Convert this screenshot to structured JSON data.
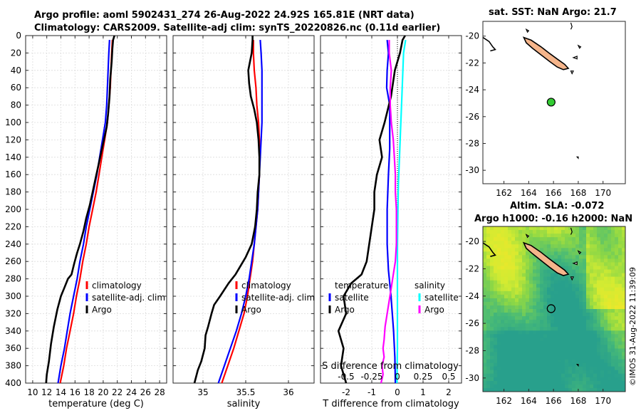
{
  "header": {
    "title_line1": "Argo profile: aoml 5902431_274 26-Aug-2022 24.92S 165.81E (NRT data)",
    "title_line2": "Climatology: CARS2009. Satellite-adj clim: synTS_20220826.nc (0.11d earlier)"
  },
  "map_top": {
    "title": "sat. SST: NaN Argo: 21.7"
  },
  "map_bottom": {
    "title_line1": "Altim. SLA: -0.072",
    "title_line2": "Argo h1000: -0.16 h2000: NaN"
  },
  "copyright": "©IMOS 31-Aug-2022 11:39:09",
  "chart_data": [
    {
      "id": "temperature",
      "type": "line",
      "xlabel": "temperature (deg C)",
      "xlim": [
        9,
        29
      ],
      "xticks": [
        10,
        12,
        14,
        16,
        18,
        20,
        22,
        24,
        26,
        28
      ],
      "ylim": [
        400,
        0
      ],
      "yticks": [
        0,
        20,
        40,
        60,
        80,
        100,
        120,
        140,
        160,
        180,
        200,
        220,
        240,
        260,
        280,
        300,
        320,
        340,
        360,
        380,
        400
      ],
      "grid": true,
      "legend": {
        "position": "lower-right",
        "entries": [
          "climatology",
          "satellite-adj. clim",
          "Argo"
        ]
      },
      "series": [
        {
          "name": "climatology",
          "color": "#ff0000",
          "width": 2.2,
          "points": [
            [
              21.3,
              5
            ],
            [
              21.2,
              20
            ],
            [
              21.1,
              40
            ],
            [
              21.0,
              60
            ],
            [
              20.8,
              80
            ],
            [
              20.6,
              100
            ],
            [
              20.2,
              120
            ],
            [
              19.8,
              140
            ],
            [
              19.4,
              160
            ],
            [
              19.0,
              180
            ],
            [
              18.5,
              200
            ],
            [
              18.0,
              220
            ],
            [
              17.6,
              240
            ],
            [
              17.1,
              260
            ],
            [
              16.7,
              280
            ],
            [
              16.2,
              300
            ],
            [
              15.8,
              320
            ],
            [
              15.3,
              340
            ],
            [
              14.8,
              360
            ],
            [
              14.4,
              380
            ],
            [
              13.9,
              400
            ]
          ]
        },
        {
          "name": "satellite-adj. clim",
          "color": "#0000ff",
          "width": 2.2,
          "points": [
            [
              20.9,
              5
            ],
            [
              20.8,
              20
            ],
            [
              20.7,
              40
            ],
            [
              20.6,
              60
            ],
            [
              20.5,
              80
            ],
            [
              20.3,
              100
            ],
            [
              19.9,
              120
            ],
            [
              19.5,
              140
            ],
            [
              19.1,
              160
            ],
            [
              18.6,
              180
            ],
            [
              18.1,
              200
            ],
            [
              17.6,
              220
            ],
            [
              17.2,
              240
            ],
            [
              16.7,
              260
            ],
            [
              16.3,
              280
            ],
            [
              15.8,
              300
            ],
            [
              15.3,
              320
            ],
            [
              14.9,
              340
            ],
            [
              14.5,
              360
            ],
            [
              14.0,
              380
            ],
            [
              13.6,
              400
            ]
          ]
        },
        {
          "name": "Argo",
          "color": "#000000",
          "width": 2.6,
          "points": [
            [
              21.6,
              0
            ],
            [
              21.4,
              5
            ],
            [
              21.3,
              15
            ],
            [
              21.2,
              30
            ],
            [
              21.0,
              50
            ],
            [
              20.9,
              70
            ],
            [
              20.7,
              90
            ],
            [
              20.5,
              105
            ],
            [
              20.1,
              120
            ],
            [
              19.7,
              135
            ],
            [
              19.3,
              150
            ],
            [
              18.9,
              165
            ],
            [
              18.5,
              180
            ],
            [
              18.1,
              195
            ],
            [
              17.6,
              210
            ],
            [
              17.2,
              225
            ],
            [
              16.7,
              240
            ],
            [
              16.3,
              250
            ],
            [
              15.9,
              262
            ],
            [
              15.5,
              275
            ],
            [
              15.0,
              280
            ],
            [
              14.5,
              290
            ],
            [
              14.0,
              300
            ],
            [
              13.5,
              315
            ],
            [
              13.0,
              335
            ],
            [
              12.6,
              355
            ],
            [
              12.3,
              375
            ],
            [
              12.0,
              390
            ],
            [
              11.9,
              400
            ]
          ]
        }
      ]
    },
    {
      "id": "salinity",
      "type": "line",
      "xlabel": "salinity",
      "xlim": [
        34.65,
        36.3
      ],
      "xticks": [
        35,
        35.5,
        36
      ],
      "ylim": [
        400,
        0
      ],
      "grid": true,
      "legend": {
        "position": "lower-right",
        "entries": [
          "climatology",
          "satellite-adj. clim",
          "Argo"
        ]
      },
      "series": [
        {
          "name": "climatology",
          "color": "#ff0000",
          "width": 2.2,
          "points": [
            [
              35.59,
              5
            ],
            [
              35.59,
              20
            ],
            [
              35.6,
              40
            ],
            [
              35.62,
              60
            ],
            [
              35.63,
              80
            ],
            [
              35.65,
              100
            ],
            [
              35.66,
              120
            ],
            [
              35.66,
              140
            ],
            [
              35.66,
              160
            ],
            [
              35.65,
              180
            ],
            [
              35.64,
              200
            ],
            [
              35.62,
              220
            ],
            [
              35.6,
              240
            ],
            [
              35.58,
              260
            ],
            [
              35.55,
              280
            ],
            [
              35.52,
              300
            ],
            [
              35.48,
              320
            ],
            [
              35.42,
              340
            ],
            [
              35.36,
              360
            ],
            [
              35.29,
              380
            ],
            [
              35.22,
              400
            ]
          ]
        },
        {
          "name": "satellite-adj. clim",
          "color": "#0000ff",
          "width": 2.2,
          "points": [
            [
              35.67,
              5
            ],
            [
              35.68,
              20
            ],
            [
              35.69,
              40
            ],
            [
              35.69,
              60
            ],
            [
              35.69,
              80
            ],
            [
              35.69,
              100
            ],
            [
              35.68,
              120
            ],
            [
              35.67,
              140
            ],
            [
              35.66,
              160
            ],
            [
              35.65,
              180
            ],
            [
              35.64,
              200
            ],
            [
              35.62,
              220
            ],
            [
              35.6,
              240
            ],
            [
              35.57,
              260
            ],
            [
              35.54,
              280
            ],
            [
              35.5,
              300
            ],
            [
              35.45,
              320
            ],
            [
              35.39,
              340
            ],
            [
              35.32,
              360
            ],
            [
              35.25,
              380
            ],
            [
              35.18,
              400
            ]
          ]
        },
        {
          "name": "Argo",
          "color": "#000000",
          "width": 2.6,
          "points": [
            [
              35.58,
              0
            ],
            [
              35.58,
              5
            ],
            [
              35.57,
              20
            ],
            [
              35.53,
              40
            ],
            [
              35.54,
              55
            ],
            [
              35.56,
              70
            ],
            [
              35.6,
              85
            ],
            [
              35.63,
              100
            ],
            [
              35.65,
              120
            ],
            [
              35.66,
              140
            ],
            [
              35.66,
              160
            ],
            [
              35.64,
              180
            ],
            [
              35.63,
              200
            ],
            [
              35.61,
              220
            ],
            [
              35.57,
              240
            ],
            [
              35.5,
              255
            ],
            [
              35.44,
              265
            ],
            [
              35.38,
              275
            ],
            [
              35.3,
              285
            ],
            [
              35.2,
              300
            ],
            [
              35.13,
              310
            ],
            [
              35.1,
              320
            ],
            [
              35.06,
              335
            ],
            [
              35.03,
              345
            ],
            [
              35.02,
              360
            ],
            [
              34.98,
              375
            ],
            [
              34.94,
              385
            ],
            [
              34.9,
              400
            ]
          ]
        }
      ]
    },
    {
      "id": "difference",
      "type": "line",
      "xlabel": "T difference from climatology",
      "x2label": "S difference from climatology",
      "xlim": [
        -3,
        2.5
      ],
      "xticks": [
        -2,
        -1,
        0,
        1,
        2
      ],
      "xlim_salinity": [
        -0.75,
        0.625
      ],
      "xticks_salinity": [
        -0.5,
        -0.25,
        0,
        0.25,
        0.5
      ],
      "ylim": [
        400,
        0
      ],
      "grid": true,
      "legend": {
        "position": "lower",
        "entries": [
          "temperature",
          "satellite",
          "Argo",
          "salinity",
          "satellite",
          "Argo"
        ]
      },
      "series": [
        {
          "name": "temperature satellite",
          "axis": "T",
          "color": "#0000ff",
          "width": 2.2,
          "points": [
            [
              -0.4,
              5
            ],
            [
              -0.35,
              20
            ],
            [
              -0.4,
              40
            ],
            [
              -0.42,
              60
            ],
            [
              -0.3,
              80
            ],
            [
              -0.3,
              100
            ],
            [
              -0.3,
              130
            ],
            [
              -0.35,
              160
            ],
            [
              -0.4,
              200
            ],
            [
              -0.4,
              240
            ],
            [
              -0.35,
              270
            ],
            [
              -0.25,
              300
            ],
            [
              -0.15,
              340
            ],
            [
              -0.1,
              370
            ],
            [
              -0.08,
              400
            ]
          ]
        },
        {
          "name": "temperature Argo",
          "axis": "T",
          "color": "#000000",
          "width": 2.6,
          "points": [
            [
              0.3,
              0
            ],
            [
              0.2,
              5
            ],
            [
              0.1,
              20
            ],
            [
              -0.1,
              40
            ],
            [
              -0.25,
              70
            ],
            [
              -0.5,
              100
            ],
            [
              -0.7,
              120
            ],
            [
              -0.6,
              140
            ],
            [
              -0.8,
              160
            ],
            [
              -0.9,
              180
            ],
            [
              -0.9,
              200
            ],
            [
              -1.0,
              220
            ],
            [
              -1.1,
              240
            ],
            [
              -1.2,
              260
            ],
            [
              -1.4,
              275
            ],
            [
              -1.8,
              285
            ],
            [
              -2.1,
              300
            ],
            [
              -2.0,
              320
            ],
            [
              -2.3,
              340
            ],
            [
              -2.1,
              360
            ],
            [
              -2.2,
              380
            ],
            [
              -2.0,
              400
            ]
          ]
        },
        {
          "name": "salinity satellite",
          "axis": "S",
          "color": "#00ffff",
          "width": 2.2,
          "points": [
            [
              0.08,
              5
            ],
            [
              0.06,
              20
            ],
            [
              0.05,
              50
            ],
            [
              0.04,
              80
            ],
            [
              0.03,
              110
            ],
            [
              0.02,
              140
            ],
            [
              0.01,
              170
            ],
            [
              0.005,
              200
            ],
            [
              0.0,
              240
            ],
            [
              0.0,
              280
            ],
            [
              0.0,
              320
            ],
            [
              0.0,
              360
            ],
            [
              -0.005,
              400
            ]
          ]
        },
        {
          "name": "salinity Argo",
          "axis": "S",
          "color": "#ff00ff",
          "width": 2.2,
          "points": [
            [
              -0.08,
              5
            ],
            [
              -0.08,
              20
            ],
            [
              -0.06,
              40
            ],
            [
              -0.07,
              60
            ],
            [
              -0.07,
              80
            ],
            [
              -0.06,
              100
            ],
            [
              -0.04,
              120
            ],
            [
              -0.03,
              140
            ],
            [
              -0.02,
              160
            ],
            [
              -0.02,
              180
            ],
            [
              -0.01,
              200
            ],
            [
              -0.01,
              220
            ],
            [
              -0.01,
              240
            ],
            [
              -0.02,
              260
            ],
            [
              -0.04,
              275
            ],
            [
              -0.06,
              290
            ],
            [
              -0.08,
              305
            ],
            [
              -0.1,
              320
            ],
            [
              -0.12,
              335
            ],
            [
              -0.13,
              350
            ],
            [
              -0.14,
              360
            ],
            [
              -0.13,
              370
            ],
            [
              -0.15,
              380
            ],
            [
              -0.14,
              390
            ],
            [
              -0.16,
              400
            ]
          ]
        }
      ]
    },
    {
      "id": "map_sst",
      "type": "scatter",
      "xlim": [
        160.3,
        171.8
      ],
      "ylim": [
        -31,
        -18.9
      ],
      "xticks": [
        162,
        164,
        166,
        168,
        170
      ],
      "yticks": [
        -20,
        -22,
        -24,
        -26,
        -28,
        -30
      ],
      "land_color": "#f5b58b",
      "marker": {
        "lon": 165.81,
        "lat": -24.92,
        "color": "#33cc33"
      }
    },
    {
      "id": "map_sla",
      "type": "heatmap",
      "xlim": [
        160.3,
        171.8
      ],
      "ylim": [
        -31,
        -18.9
      ],
      "xticks": [
        162,
        164,
        166,
        168,
        170
      ],
      "yticks": [
        -20,
        -22,
        -24,
        -26,
        -28,
        -30
      ],
      "land_color": "#f5b58b",
      "marker": {
        "lon": 165.81,
        "lat": -24.92
      }
    }
  ]
}
